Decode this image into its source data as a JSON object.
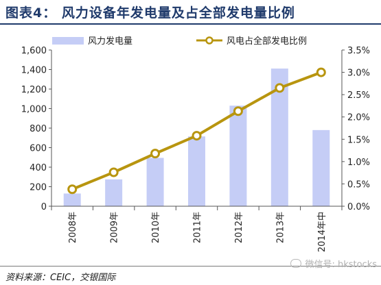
{
  "header": {
    "title": "图表4： 风力设备年发电量及占全部发电量比例"
  },
  "footer": {
    "source": "资料来源：CEIC，交银国际",
    "watermark": "微信号: hkstocks"
  },
  "colors": {
    "bar": "#c5cdf6",
    "line": "#b8950f",
    "marker_fill": "#ffffff",
    "title": "#1f3a6b"
  },
  "chart_data": {
    "type": "bar+line",
    "categories": [
      "2008年",
      "2009年",
      "2010年",
      "2011年",
      "2012年",
      "2013年",
      "2014年中"
    ],
    "series": [
      {
        "name": "风力发电量",
        "type": "bar",
        "axis": "left",
        "values": [
          130,
          275,
          495,
          715,
          1030,
          1410,
          780
        ]
      },
      {
        "name": "风电占全部发电比例",
        "type": "line",
        "axis": "right",
        "values": [
          0.38,
          0.76,
          1.18,
          1.58,
          2.13,
          2.65,
          3.0
        ]
      }
    ],
    "y_left": {
      "min": 0,
      "max": 1600,
      "ticks": [
        "0",
        "200",
        "400",
        "600",
        "800",
        "1,000",
        "1,200",
        "1,400",
        "1,600"
      ]
    },
    "y_right": {
      "min": 0,
      "max": 3.5,
      "ticks": [
        "0.0%",
        "0.5%",
        "1.0%",
        "1.5%",
        "2.0%",
        "2.5%",
        "3.0%",
        "3.5%"
      ]
    },
    "legend": "top",
    "grid": false
  }
}
